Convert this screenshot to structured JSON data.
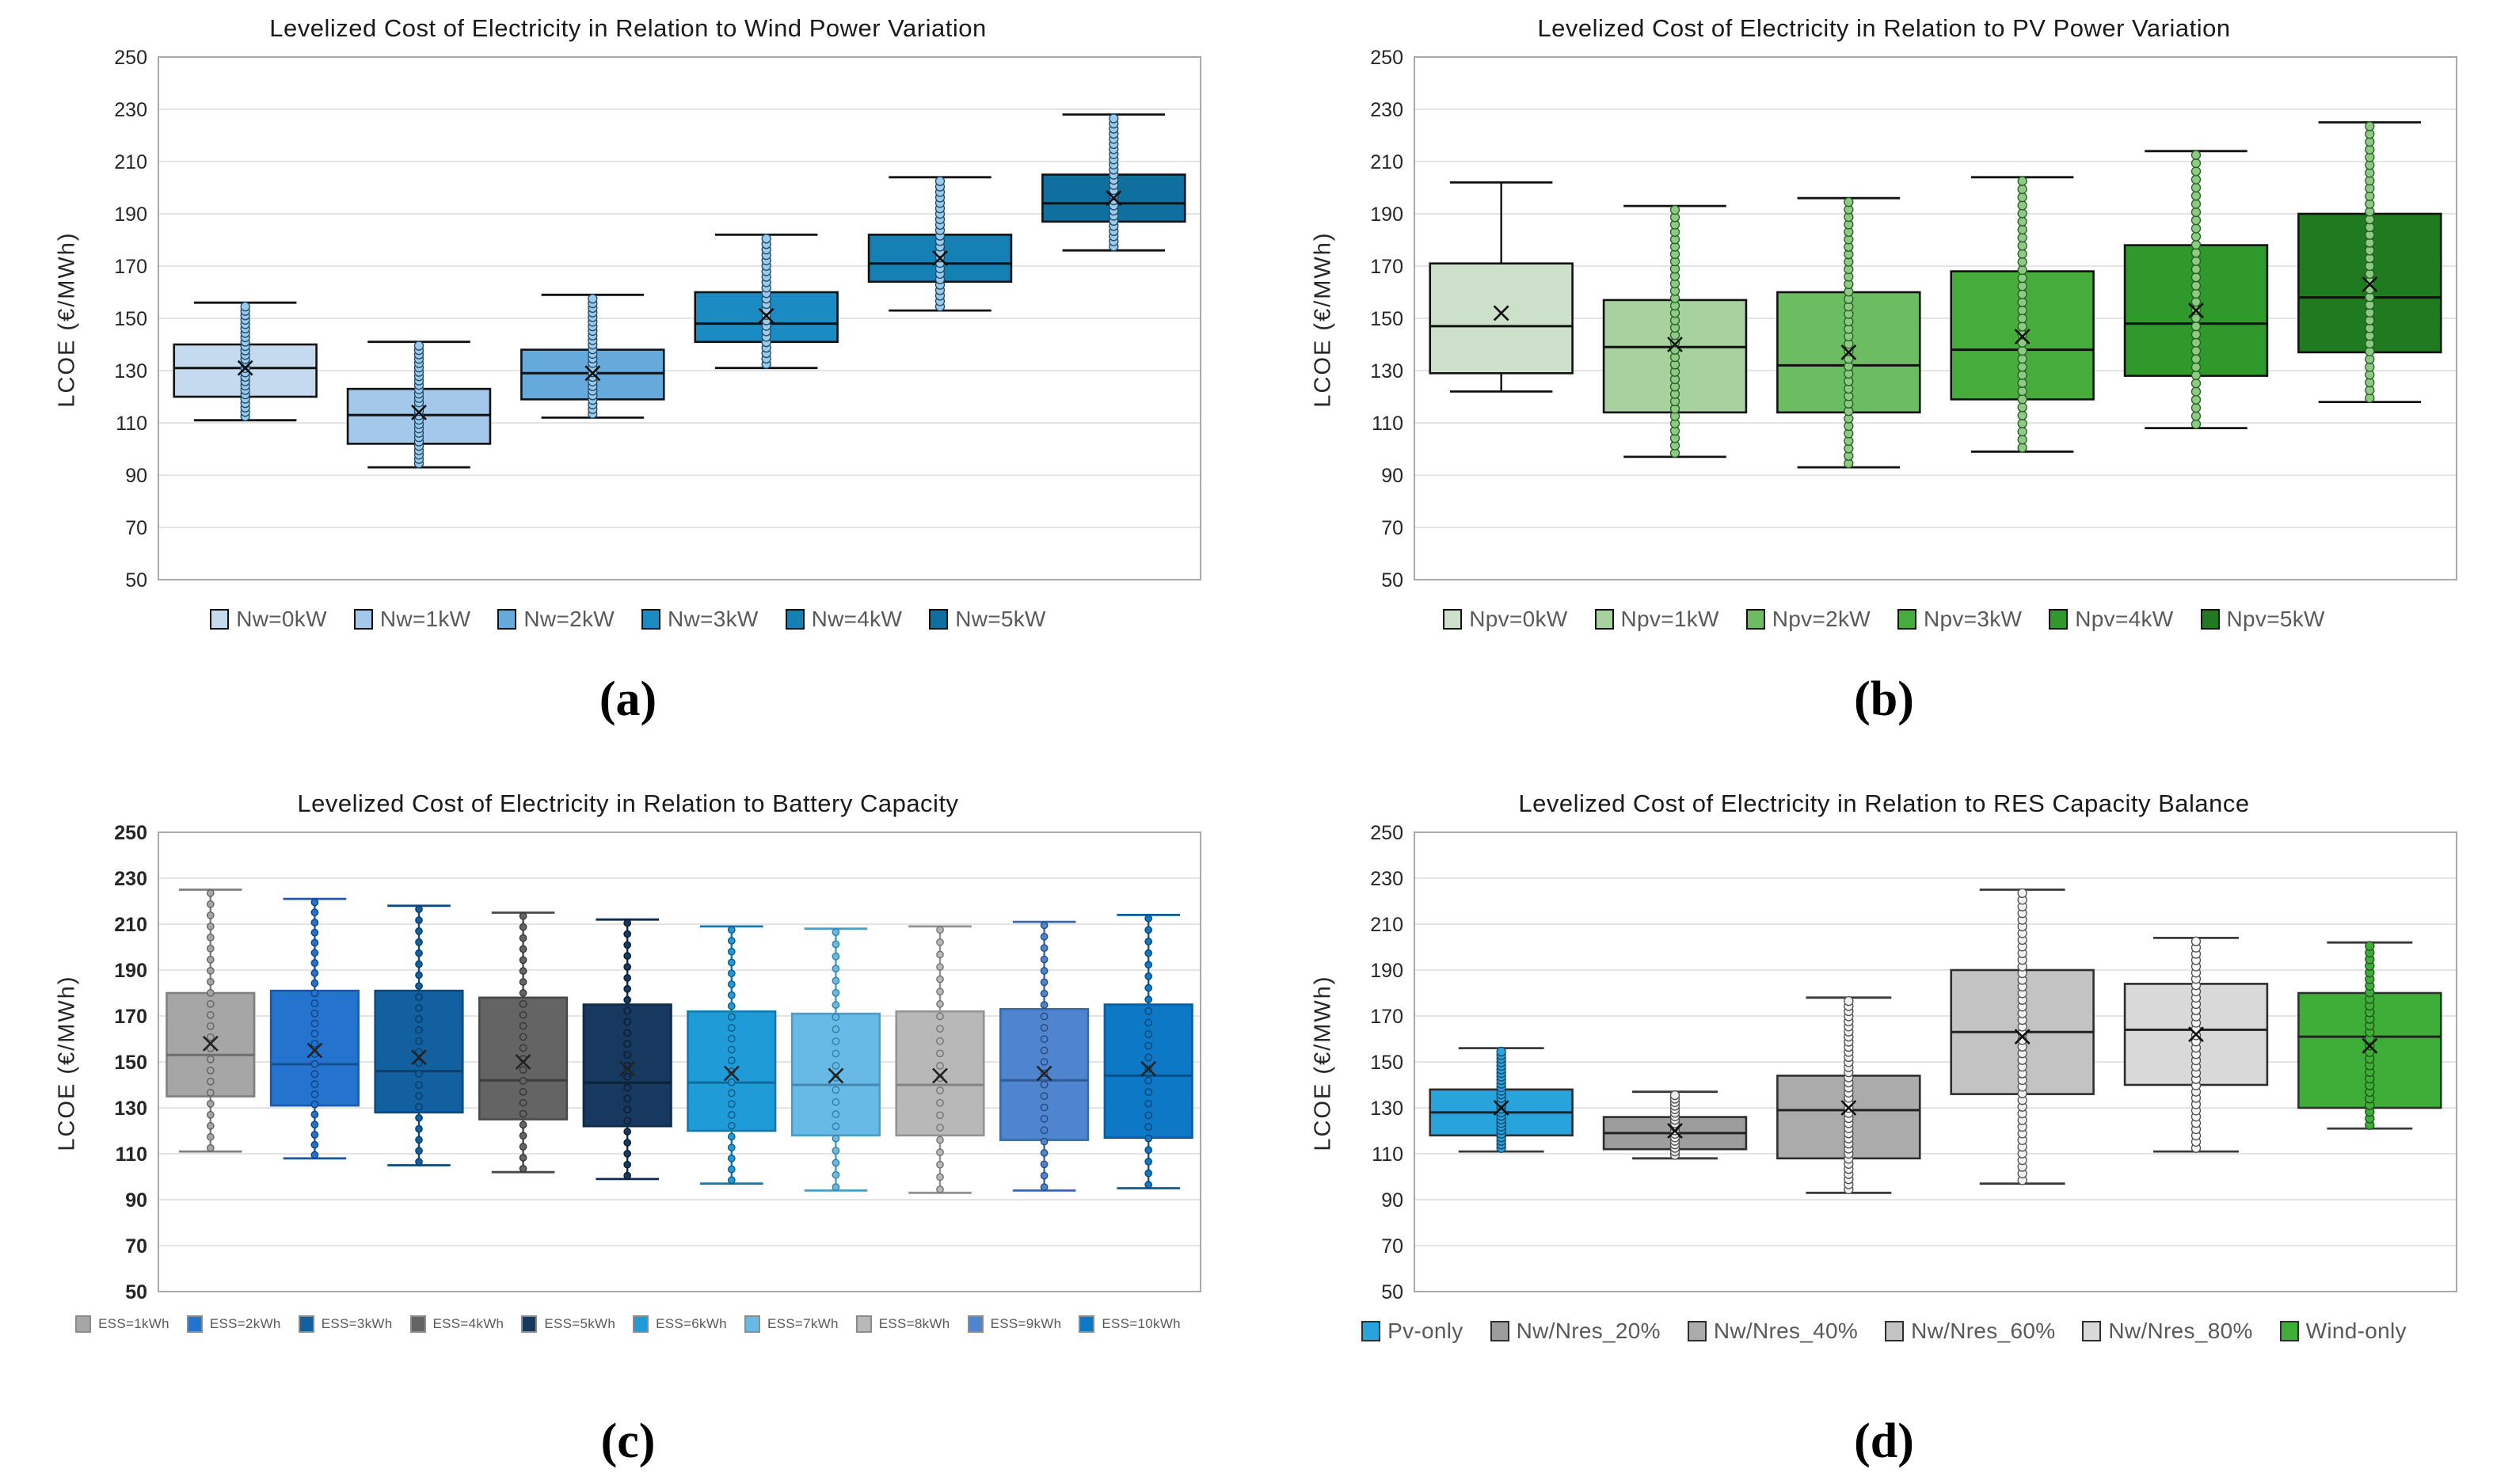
{
  "page": {
    "background": "#ffffff",
    "ylabel_shared": "LCOE (€/MWh)"
  },
  "chart_data": [
    {
      "id": "a",
      "type": "box",
      "title": "Levelized Cost of Electricity in Relation to Wind Power Variation",
      "caption": "(a)",
      "ylabel": "LCOE (€/MWh)",
      "ylim": [
        50,
        250
      ],
      "yticks": [
        50,
        70,
        90,
        110,
        130,
        150,
        170,
        190,
        210,
        230,
        250
      ],
      "grid": true,
      "legend_position": "bottom",
      "categories": [
        "Nw=0kW",
        "Nw=1kW",
        "Nw=2kW",
        "Nw=3kW",
        "Nw=4kW",
        "Nw=5kW"
      ],
      "series": [
        {
          "label": "Nw=0kW",
          "min": 111,
          "q1": 120,
          "median": 131,
          "q3": 140,
          "max": 156,
          "mean": 131,
          "n_points": 26
        },
        {
          "label": "Nw=1kW",
          "min": 93,
          "q1": 102,
          "median": 113,
          "q3": 123,
          "max": 141,
          "mean": 114,
          "n_points": 28
        },
        {
          "label": "Nw=2kW",
          "min": 112,
          "q1": 119,
          "median": 129,
          "q3": 138,
          "max": 159,
          "mean": 129,
          "n_points": 26
        },
        {
          "label": "Nw=3kW",
          "min": 131,
          "q1": 141,
          "median": 148,
          "q3": 160,
          "max": 182,
          "mean": 151,
          "n_points": 24
        },
        {
          "label": "Nw=4kW",
          "min": 153,
          "q1": 164,
          "median": 171,
          "q3": 182,
          "max": 204,
          "mean": 173,
          "n_points": 24
        },
        {
          "label": "Nw=5kW",
          "min": 176,
          "q1": 187,
          "median": 194,
          "q3": 205,
          "max": 228,
          "mean": 196,
          "n_points": 26
        }
      ],
      "colors": {
        "box": [
          "#c6daef",
          "#a4c8e9",
          "#66aadb",
          "#1b8cc3",
          "#1480b4",
          "#0f6f9f"
        ],
        "box_stroke": "#111111",
        "whisker": "#111111",
        "median": "#111111",
        "mean": "#111111",
        "dot_fill": "#9ccae9",
        "dot_stroke": "#1c4766",
        "swatch_border": "#111111"
      }
    },
    {
      "id": "b",
      "type": "box",
      "title": "Levelized Cost of Electricity in Relation to PV Power Variation",
      "caption": "(b)",
      "ylabel": "LCOE (€/MWh)",
      "ylim": [
        50,
        250
      ],
      "yticks": [
        50,
        70,
        90,
        110,
        130,
        150,
        170,
        190,
        210,
        230,
        250
      ],
      "grid": true,
      "legend_position": "bottom",
      "categories": [
        "Npv=0kW",
        "Npv=1kW",
        "Npv=2kW",
        "Npv=3kW",
        "Npv=4kW",
        "Npv=5kW"
      ],
      "series": [
        {
          "label": "Npv=0kW",
          "min": 122,
          "q1": 129,
          "median": 147,
          "q3": 171,
          "max": 202,
          "mean": 152,
          "n_points": 0
        },
        {
          "label": "Npv=1kW",
          "min": 97,
          "q1": 114,
          "median": 139,
          "q3": 157,
          "max": 193,
          "mean": 140,
          "n_points": 34
        },
        {
          "label": "Npv=2kW",
          "min": 93,
          "q1": 114,
          "median": 132,
          "q3": 160,
          "max": 196,
          "mean": 137,
          "n_points": 36
        },
        {
          "label": "Npv=3kW",
          "min": 99,
          "q1": 119,
          "median": 138,
          "q3": 168,
          "max": 204,
          "mean": 143,
          "n_points": 34
        },
        {
          "label": "Npv=4kW",
          "min": 108,
          "q1": 128,
          "median": 148,
          "q3": 178,
          "max": 214,
          "mean": 153,
          "n_points": 34
        },
        {
          "label": "Npv=5kW",
          "min": 118,
          "q1": 137,
          "median": 158,
          "q3": 190,
          "max": 225,
          "mean": 163,
          "n_points": 36
        }
      ],
      "colors": {
        "box": [
          "#cde0c9",
          "#a7d2a0",
          "#6cbd62",
          "#46ad3c",
          "#30992c",
          "#1f7a20"
        ],
        "box_stroke": "#111111",
        "whisker": "#111111",
        "median": "#111111",
        "mean": "#111111",
        "dot_fill": "#8fca85",
        "dot_stroke": "#235e23",
        "swatch_border": "#111111"
      }
    },
    {
      "id": "c",
      "type": "box",
      "title": "Levelized Cost of Electricity in Relation to Battery Capacity",
      "caption": "(c)",
      "ylabel": "LCOE (€/MWh)",
      "ylim": [
        50,
        250
      ],
      "yticks": [
        50,
        70,
        90,
        110,
        130,
        150,
        170,
        190,
        210,
        230,
        250
      ],
      "grid": true,
      "legend_position": "bottom",
      "categories": [
        "ESS=1kWh",
        "ESS=2kWh",
        "ESS=3kWh",
        "ESS=4kWh",
        "ESS=5kWh",
        "ESS=6kWh",
        "ESS=7kWh",
        "ESS=8kWh",
        "ESS=9kWh",
        "ESS=10kWh"
      ],
      "series": [
        {
          "label": "ESS=1kWh",
          "min": 111,
          "q1": 135,
          "median": 153,
          "q3": 180,
          "max": 225,
          "mean": 158,
          "n_points": 24
        },
        {
          "label": "ESS=2kWh",
          "min": 108,
          "q1": 131,
          "median": 149,
          "q3": 181,
          "max": 221,
          "mean": 155,
          "n_points": 26
        },
        {
          "label": "ESS=3kWh",
          "min": 105,
          "q1": 128,
          "median": 146,
          "q3": 181,
          "max": 218,
          "mean": 152,
          "n_points": 24
        },
        {
          "label": "ESS=4kWh",
          "min": 102,
          "q1": 125,
          "median": 142,
          "q3": 178,
          "max": 215,
          "mean": 150,
          "n_points": 24
        },
        {
          "label": "ESS=5kWh",
          "min": 99,
          "q1": 122,
          "median": 141,
          "q3": 175,
          "max": 212,
          "mean": 147,
          "n_points": 24
        },
        {
          "label": "ESS=6kWh",
          "min": 97,
          "q1": 120,
          "median": 141,
          "q3": 172,
          "max": 209,
          "mean": 145,
          "n_points": 24
        },
        {
          "label": "ESS=7kWh",
          "min": 94,
          "q1": 118,
          "median": 140,
          "q3": 171,
          "max": 208,
          "mean": 144,
          "n_points": 22
        },
        {
          "label": "ESS=8kWh",
          "min": 93,
          "q1": 118,
          "median": 140,
          "q3": 172,
          "max": 209,
          "mean": 144,
          "n_points": 22
        },
        {
          "label": "ESS=9kWh",
          "min": 94,
          "q1": 116,
          "median": 142,
          "q3": 173,
          "max": 211,
          "mean": 145,
          "n_points": 24
        },
        {
          "label": "ESS=10kWh",
          "min": 95,
          "q1": 117,
          "median": 144,
          "q3": 175,
          "max": 214,
          "mean": 147,
          "n_points": 24
        }
      ],
      "colors": {
        "box": [
          "#a6a6a6",
          "#2473cf",
          "#12609f",
          "#646464",
          "#17395f",
          "#1f9bd8",
          "#68bae6",
          "#b8b8b8",
          "#4f84cf",
          "#0d79c6"
        ],
        "box_stroke": [
          "#7f7f7f",
          "#1a5aa8",
          "#0b4a7e",
          "#494949",
          "#0f2a48",
          "#1579ab",
          "#4a9cc9",
          "#929292",
          "#3a68ab",
          "#0a5c9a"
        ],
        "whisker": [
          "#7f7f7f",
          "#1a5aa8",
          "#0b4a7e",
          "#494949",
          "#0f2a48",
          "#1579ab",
          "#4a9cc9",
          "#929292",
          "#3a68ab",
          "#0a5c9a"
        ],
        "median": [
          "#6e6e6e",
          "#16508f",
          "#0a3f6b",
          "#3d3d3d",
          "#0c2238",
          "#126a96",
          "#3f89b3",
          "#838383",
          "#2f5a96",
          "#084f86"
        ],
        "mean": "#222222",
        "dot_fill": [
          "#a6a6a6",
          "#2473cf",
          "#12609f",
          "#646464",
          "#17395f",
          "#1f9bd8",
          "#68bae6",
          "#b8b8b8",
          "#4f84cf",
          "#0d79c6"
        ],
        "dot_stroke": [
          "#5f5f5f",
          "#123f78",
          "#073a62",
          "#333333",
          "#091a2c",
          "#0d5578",
          "#2f7ba0",
          "#6f6f6f",
          "#234678",
          "#06436e"
        ],
        "swatch_border": "#8c8c8c"
      }
    },
    {
      "id": "d",
      "type": "box",
      "title": "Levelized Cost of Electricity in Relation to RES Capacity Balance",
      "caption": "(d)",
      "ylabel": "LCOE (€/MWh)",
      "ylim": [
        50,
        250
      ],
      "yticks": [
        50,
        70,
        90,
        110,
        130,
        150,
        170,
        190,
        210,
        230,
        250
      ],
      "grid": true,
      "legend_position": "bottom",
      "categories": [
        "Pv-only",
        "Nw/Nres_20%",
        "Nw/Nres_40%",
        "Nw/Nres_60%",
        "Nw/Nres_80%",
        "Wind-only"
      ],
      "series": [
        {
          "label": "Pv-only",
          "min": 111,
          "q1": 118,
          "median": 128,
          "q3": 138,
          "max": 156,
          "mean": 130,
          "n_points": 28
        },
        {
          "label": "Nw/Nres_20%",
          "min": 108,
          "q1": 112,
          "median": 119,
          "q3": 126,
          "max": 137,
          "mean": 120,
          "n_points": 18
        },
        {
          "label": "Nw/Nres_40%",
          "min": 93,
          "q1": 108,
          "median": 129,
          "q3": 144,
          "max": 178,
          "mean": 130,
          "n_points": 38
        },
        {
          "label": "Nw/Nres_60%",
          "min": 97,
          "q1": 136,
          "median": 163,
          "q3": 190,
          "max": 225,
          "mean": 161,
          "n_points": 44
        },
        {
          "label": "Nw/Nres_80%",
          "min": 111,
          "q1": 140,
          "median": 164,
          "q3": 184,
          "max": 204,
          "mean": 162,
          "n_points": 34
        },
        {
          "label": "Wind-only",
          "min": 121,
          "q1": 130,
          "median": 161,
          "q3": 180,
          "max": 202,
          "mean": 157,
          "n_points": 28
        }
      ],
      "colors": {
        "box": [
          "#29a3dc",
          "#9d9d9d",
          "#ababab",
          "#c3c3c3",
          "#d9d9d9",
          "#3fae38"
        ],
        "box_stroke": "#2e2e2e",
        "whisker": "#3a3a3a",
        "median": "#222222",
        "mean": "#111111",
        "dot_fill": [
          "#29a3dc",
          "#ededed",
          "#f2f2f2",
          "#f2f2f2",
          "#f7f7f7",
          "#3fae38"
        ],
        "dot_stroke": [
          "#12486b",
          "#4f4f4f",
          "#4f4f4f",
          "#4f4f4f",
          "#4f4f4f",
          "#1d541a"
        ],
        "swatch_border": "#2e2e2e"
      }
    }
  ]
}
